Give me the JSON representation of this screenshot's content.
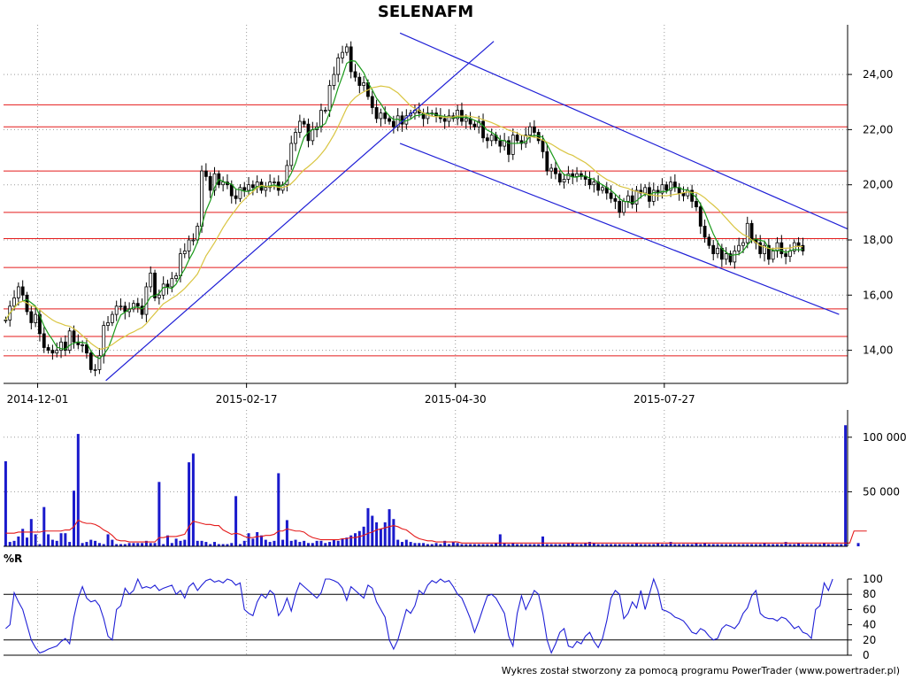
{
  "chart_data": [
    {
      "name": "price",
      "type": "candlestick",
      "title": "SELENAFM",
      "ylim": [
        12.8,
        25.8
      ],
      "xlim": [
        0,
        198
      ],
      "y_ticks": [
        {
          "value": 14,
          "label": "14,00"
        },
        {
          "value": 16,
          "label": "16,00"
        },
        {
          "value": 18,
          "label": "18,00"
        },
        {
          "value": 20,
          "label": "20,00"
        },
        {
          "value": 22,
          "label": "22,00"
        },
        {
          "value": 24,
          "label": "24,00"
        }
      ],
      "x_ticks": [
        {
          "x": 8,
          "label": "2014-12-01"
        },
        {
          "x": 57,
          "label": "2015-02-17"
        },
        {
          "x": 106,
          "label": "2015-04-30"
        },
        {
          "x": 155,
          "label": "2015-07-27"
        }
      ],
      "grid": true,
      "horizontal_levels": [
        22.9,
        22.1,
        20.5,
        19.0,
        18.05,
        17.0,
        15.5,
        14.5,
        13.8
      ],
      "trendlines": [
        {
          "x1": 24,
          "y1": 12.9,
          "x2": 115,
          "y2": 25.2
        },
        {
          "x1": 93,
          "y1": 25.5,
          "x2": 198,
          "y2": 18.4
        },
        {
          "x1": 93,
          "y1": 21.5,
          "x2": 196,
          "y2": 15.3
        }
      ],
      "close": [
        15.1,
        15.6,
        15.9,
        16.3,
        16.0,
        15.4,
        15.0,
        15.3,
        14.6,
        14.1,
        14.0,
        13.9,
        14.0,
        14.3,
        14.0,
        14.7,
        14.3,
        14.2,
        14.2,
        13.9,
        13.3,
        13.3,
        13.8,
        14.9,
        15.0,
        15.3,
        15.6,
        15.6,
        15.4,
        15.5,
        15.7,
        15.6,
        15.3,
        16.3,
        16.8,
        15.9,
        16.0,
        16.4,
        16.3,
        16.6,
        16.7,
        17.5,
        17.6,
        18.0,
        18.0,
        18.5,
        20.5,
        20.3,
        19.8,
        20.4,
        20.0,
        20.1,
        20.0,
        19.6,
        19.5,
        19.9,
        19.8,
        20.0,
        19.9,
        20.1,
        19.8,
        19.9,
        20.1,
        20.1,
        19.8,
        20.0,
        20.7,
        21.5,
        21.9,
        22.3,
        22.2,
        21.6,
        22.0,
        22.1,
        22.7,
        22.7,
        23.6,
        24.0,
        24.6,
        24.8,
        25.0,
        24.1,
        23.9,
        23.6,
        23.7,
        23.2,
        22.8,
        22.4,
        22.6,
        22.4,
        22.3,
        22.1,
        22.5,
        22.2,
        22.5,
        22.6,
        22.7,
        22.6,
        22.4,
        22.6,
        22.6,
        22.5,
        22.4,
        22.3,
        22.5,
        22.4,
        22.7,
        22.3,
        22.4,
        22.2,
        22.1,
        22.3,
        21.7,
        21.6,
        21.8,
        21.6,
        21.4,
        21.6,
        21.1,
        21.8,
        21.6,
        21.5,
        21.8,
        22.1,
        21.9,
        21.6,
        21.2,
        20.5,
        20.6,
        20.4,
        20.1,
        20.2,
        20.4,
        20.3,
        20.4,
        20.3,
        20.2,
        20.0,
        20.1,
        19.8,
        19.9,
        19.7,
        19.5,
        19.4,
        19.0,
        19.4,
        19.6,
        19.3,
        19.8,
        19.7,
        19.9,
        19.4,
        19.8,
        19.7,
        20.0,
        19.8,
        20.1,
        19.9,
        19.7,
        19.6,
        19.8,
        19.4,
        19.2,
        18.5,
        18.1,
        17.8,
        17.5,
        17.7,
        17.3,
        17.5,
        17.2,
        17.6,
        17.8,
        17.9,
        18.6,
        18.0,
        17.9,
        17.5,
        17.8,
        17.3,
        17.6,
        17.9,
        17.5,
        17.4,
        17.6,
        17.9,
        17.8,
        17.6
      ]
    },
    {
      "name": "volume",
      "type": "bar",
      "ylim": [
        0,
        125000
      ],
      "y_ticks": [
        {
          "value": 50000,
          "label": "50 000"
        },
        {
          "value": 100000,
          "label": "100 000"
        }
      ],
      "values": [
        78000,
        4000,
        5000,
        9000,
        16000,
        8000,
        25000,
        11000,
        2000,
        36000,
        11000,
        6000,
        5000,
        12000,
        12000,
        4000,
        51000,
        103000,
        3000,
        4000,
        6000,
        5000,
        3000,
        2000,
        11000,
        6000,
        2000,
        2000,
        2000,
        3000,
        3000,
        3000,
        3000,
        5000,
        3000,
        3000,
        59000,
        2000,
        10000,
        3000,
        7000,
        5000,
        6000,
        77000,
        85000,
        5000,
        5000,
        4000,
        2000,
        4000,
        2000,
        2000,
        2000,
        3000,
        46000,
        2000,
        5000,
        12000,
        7000,
        13000,
        10000,
        6000,
        4000,
        5000,
        67000,
        6000,
        24000,
        5000,
        6000,
        4000,
        5000,
        3000,
        3000,
        5000,
        5000,
        3000,
        4000,
        6000,
        5000,
        7000,
        8000,
        10000,
        12000,
        14000,
        18000,
        35000,
        28000,
        22000,
        16000,
        22000,
        34000,
        25000,
        6000,
        4000,
        6000,
        4000,
        3000,
        3000,
        3000,
        2000,
        2000,
        3000,
        2000,
        5000,
        2000,
        4000,
        3000,
        2000,
        2000,
        2000,
        2000,
        2000,
        2000,
        2000,
        2000,
        3000,
        11000,
        3000,
        2000,
        3000,
        2000,
        2000,
        2000,
        2000,
        2000,
        2000,
        9000,
        2000,
        2000,
        2000,
        2000,
        2000,
        3000,
        3000,
        2000,
        2000,
        3000,
        4000,
        3000,
        2000,
        2000,
        2000,
        2000,
        2000,
        2000,
        2000,
        2000,
        2000,
        3000,
        2000,
        2000,
        2000,
        2000,
        3000,
        2000,
        2000,
        4000,
        2000,
        2000,
        2000,
        2000,
        2000,
        3000,
        2000,
        3000,
        2000,
        2000,
        2000,
        2000,
        2000,
        2000,
        2000,
        2000,
        2000,
        2000,
        2000,
        2000,
        2000,
        3000,
        2000,
        2000,
        2000,
        2000,
        4000,
        2000,
        2000,
        3000,
        2000,
        2000,
        2000,
        2000,
        2000,
        3000,
        2000,
        2000,
        2000,
        2000,
        111000,
        0,
        0,
        3000
      ],
      "avg": [
        12000,
        12000,
        12000,
        13000,
        13000,
        13000,
        13000,
        13000,
        13000,
        14000,
        14000,
        14000,
        14000,
        14000,
        15000,
        15000,
        18000,
        24000,
        22000,
        21000,
        21000,
        20000,
        18000,
        15000,
        13000,
        10000,
        6000,
        5000,
        5000,
        4000,
        4000,
        4000,
        4000,
        4000,
        4000,
        4000,
        8000,
        8000,
        9000,
        9000,
        9000,
        10000,
        11000,
        18000,
        23000,
        22000,
        21000,
        20000,
        20000,
        19000,
        19000,
        15000,
        13000,
        11000,
        12000,
        11000,
        9000,
        8000,
        8000,
        9000,
        9000,
        10000,
        10000,
        11000,
        14000,
        14000,
        16000,
        15000,
        14000,
        14000,
        13000,
        10000,
        8000,
        7000,
        6000,
        6000,
        6000,
        6000,
        6000,
        7000,
        7000,
        8000,
        8000,
        9000,
        10000,
        12000,
        13000,
        15000,
        16000,
        17000,
        18000,
        19000,
        18000,
        16000,
        15000,
        12000,
        9000,
        7000,
        6000,
        5000,
        5000,
        4000,
        4000,
        4000,
        4000,
        4000,
        4000,
        3000,
        3000,
        3000,
        3000,
        3000,
        3000,
        3000,
        3000,
        3000,
        3000,
        3000,
        3000,
        3000,
        3000,
        3000,
        3000,
        3000,
        3000,
        3000,
        3000,
        3000,
        3000,
        3000,
        3000,
        3000,
        3000,
        3000,
        3000,
        3000,
        3000,
        3000,
        3000,
        3000,
        3000,
        3000,
        3000,
        3000,
        3000,
        3000,
        3000,
        3000,
        3000,
        3000,
        3000,
        3000,
        3000,
        3000,
        3000,
        3000,
        3000,
        3000,
        3000,
        3000,
        3000,
        3000,
        3000,
        3000,
        3000,
        3000,
        3000,
        3000,
        3000,
        3000,
        3000,
        3000,
        3000,
        3000,
        3000,
        3000,
        3000,
        3000,
        3000,
        3000,
        3000,
        3000,
        3000,
        3000,
        3000,
        3000,
        3000,
        3000,
        3000,
        3000,
        3000,
        3000,
        3000,
        3000,
        3000,
        3000,
        3000,
        3000,
        3000,
        14000,
        14000,
        14000,
        14000
      ]
    },
    {
      "name": "williams-r",
      "type": "line",
      "label": "%R",
      "ylim": [
        0,
        100
      ],
      "y_ticks": [
        {
          "value": 0,
          "label": "0"
        },
        {
          "value": 20,
          "label": "20"
        },
        {
          "value": 40,
          "label": "40"
        },
        {
          "value": 60,
          "label": "60"
        },
        {
          "value": 80,
          "label": "80"
        },
        {
          "value": 100,
          "label": "100"
        }
      ],
      "levels": [
        20,
        80
      ],
      "values": [
        35,
        40,
        82,
        70,
        60,
        40,
        20,
        10,
        3,
        5,
        8,
        10,
        12,
        18,
        22,
        15,
        50,
        75,
        90,
        75,
        70,
        72,
        65,
        48,
        25,
        20,
        60,
        65,
        88,
        80,
        85,
        100,
        88,
        90,
        88,
        92,
        85,
        88,
        90,
        92,
        80,
        85,
        75,
        90,
        95,
        85,
        92,
        98,
        100,
        96,
        98,
        95,
        100,
        98,
        92,
        95,
        60,
        55,
        52,
        70,
        80,
        75,
        85,
        80,
        52,
        60,
        75,
        58,
        80,
        95,
        90,
        85,
        80,
        75,
        82,
        100,
        100,
        98,
        95,
        88,
        72,
        90,
        85,
        80,
        75,
        92,
        88,
        70,
        60,
        50,
        20,
        8,
        20,
        40,
        60,
        55,
        65,
        85,
        80,
        92,
        98,
        95,
        100,
        96,
        98,
        90,
        80,
        75,
        62,
        48,
        30,
        45,
        62,
        78,
        80,
        75,
        65,
        55,
        25,
        12,
        55,
        78,
        60,
        72,
        85,
        80,
        55,
        20,
        3,
        15,
        30,
        35,
        12,
        10,
        18,
        15,
        25,
        30,
        18,
        10,
        22,
        45,
        75,
        85,
        80,
        48,
        55,
        70,
        62,
        85,
        60,
        80,
        100,
        85,
        60,
        58,
        55,
        50,
        48,
        45,
        38,
        30,
        28,
        35,
        32,
        25,
        20,
        22,
        35,
        40,
        38,
        35,
        42,
        55,
        62,
        78,
        85,
        55,
        50,
        48,
        48,
        45,
        50,
        48,
        42,
        35,
        38,
        30,
        28,
        22,
        60,
        65,
        95,
        85,
        100
      ]
    }
  ],
  "footer": "Wykres został stworzony za pomocą programu PowerTrader (www.powertrader.pl)"
}
